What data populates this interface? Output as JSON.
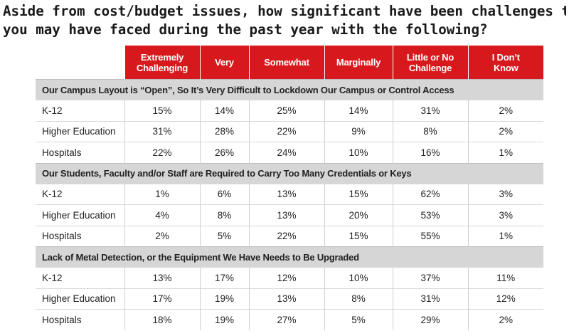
{
  "title_lines": [
    "Aside from cost/budget issues, how significant have been challenges that",
    "you may have faced during the past year with the following?"
  ],
  "chart_data": {
    "type": "table",
    "columns": [
      "Extremely Challenging",
      "Very",
      "Somewhat",
      "Marginally",
      "Little or No Challenge",
      "I Don’t Know"
    ],
    "column_lines": [
      [
        "Extremely",
        "Challenging"
      ],
      [
        "Very"
      ],
      [
        "Somewhat"
      ],
      [
        "Marginally"
      ],
      [
        "Little or No",
        "Challenge"
      ],
      [
        "I Don’t",
        "Know"
      ]
    ],
    "sections": [
      {
        "title": "Our Campus Layout is “Open”, So It’s Very Difficult to Lockdown Our Campus or Control Access",
        "rows": [
          {
            "label": "K-12",
            "values": [
              "15%",
              "14%",
              "25%",
              "14%",
              "31%",
              "2%"
            ]
          },
          {
            "label": "Higher Education",
            "values": [
              "31%",
              "28%",
              "22%",
              "9%",
              "8%",
              "2%"
            ]
          },
          {
            "label": "Hospitals",
            "values": [
              "22%",
              "26%",
              "24%",
              "10%",
              "16%",
              "1%"
            ]
          }
        ]
      },
      {
        "title": "Our Students, Faculty and/or Staff are Required to Carry Too Many Credentials or Keys",
        "rows": [
          {
            "label": "K-12",
            "values": [
              "1%",
              "6%",
              "13%",
              "15%",
              "62%",
              "3%"
            ]
          },
          {
            "label": "Higher Education",
            "values": [
              "4%",
              "8%",
              "13%",
              "20%",
              "53%",
              "3%"
            ]
          },
          {
            "label": "Hospitals",
            "values": [
              "2%",
              "5%",
              "22%",
              "15%",
              "55%",
              "1%"
            ]
          }
        ]
      },
      {
        "title": "Lack of Metal Detection, or the Equipment We Have Needs to Be Upgraded",
        "rows": [
          {
            "label": "K-12",
            "values": [
              "13%",
              "17%",
              "12%",
              "10%",
              "37%",
              "11%"
            ]
          },
          {
            "label": "Higher Education",
            "values": [
              "17%",
              "19%",
              "13%",
              "8%",
              "31%",
              "12%"
            ]
          },
          {
            "label": "Hospitals",
            "values": [
              "18%",
              "19%",
              "27%",
              "5%",
              "29%",
              "2%"
            ]
          }
        ]
      }
    ]
  }
}
